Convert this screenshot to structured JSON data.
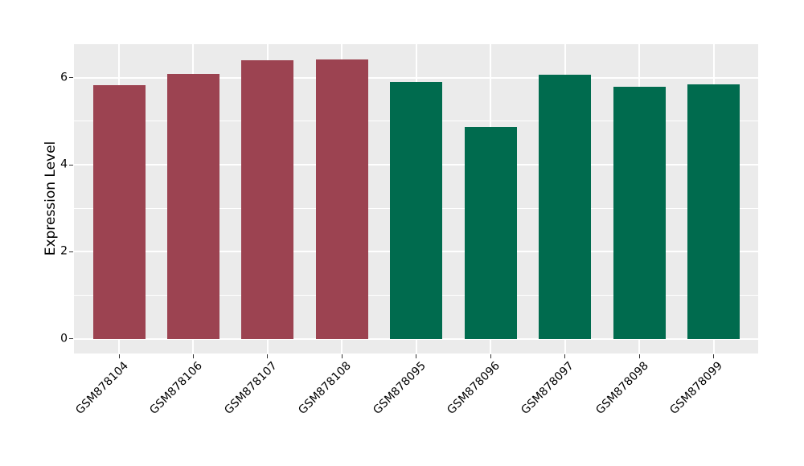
{
  "chart_data": {
    "type": "bar",
    "title": "",
    "xlabel": "",
    "ylabel": "Expression Level",
    "categories": [
      "GSM878104",
      "GSM878106",
      "GSM878107",
      "GSM878108",
      "GSM878095",
      "GSM878096",
      "GSM878097",
      "GSM878098",
      "GSM878099"
    ],
    "values": [
      5.82,
      6.08,
      6.4,
      6.42,
      5.91,
      4.86,
      6.06,
      5.79,
      5.85
    ],
    "bar_colors": [
      "#9C4351",
      "#9C4351",
      "#9C4351",
      "#9C4351",
      "#006B4E",
      "#006B4E",
      "#006B4E",
      "#006B4E",
      "#006B4E"
    ],
    "group_colors": {
      "red": "#9C4351",
      "green": "#006B4E"
    },
    "ylim": [
      0,
      6.77
    ],
    "yticks": [
      0,
      2,
      4,
      6
    ],
    "yticks_minor": [
      1,
      3,
      5
    ],
    "grid": true,
    "legend_position": "none",
    "panel_background": "#EBEBEB",
    "grid_color": "#FFFFFF",
    "x_tick_rotation": -45
  }
}
